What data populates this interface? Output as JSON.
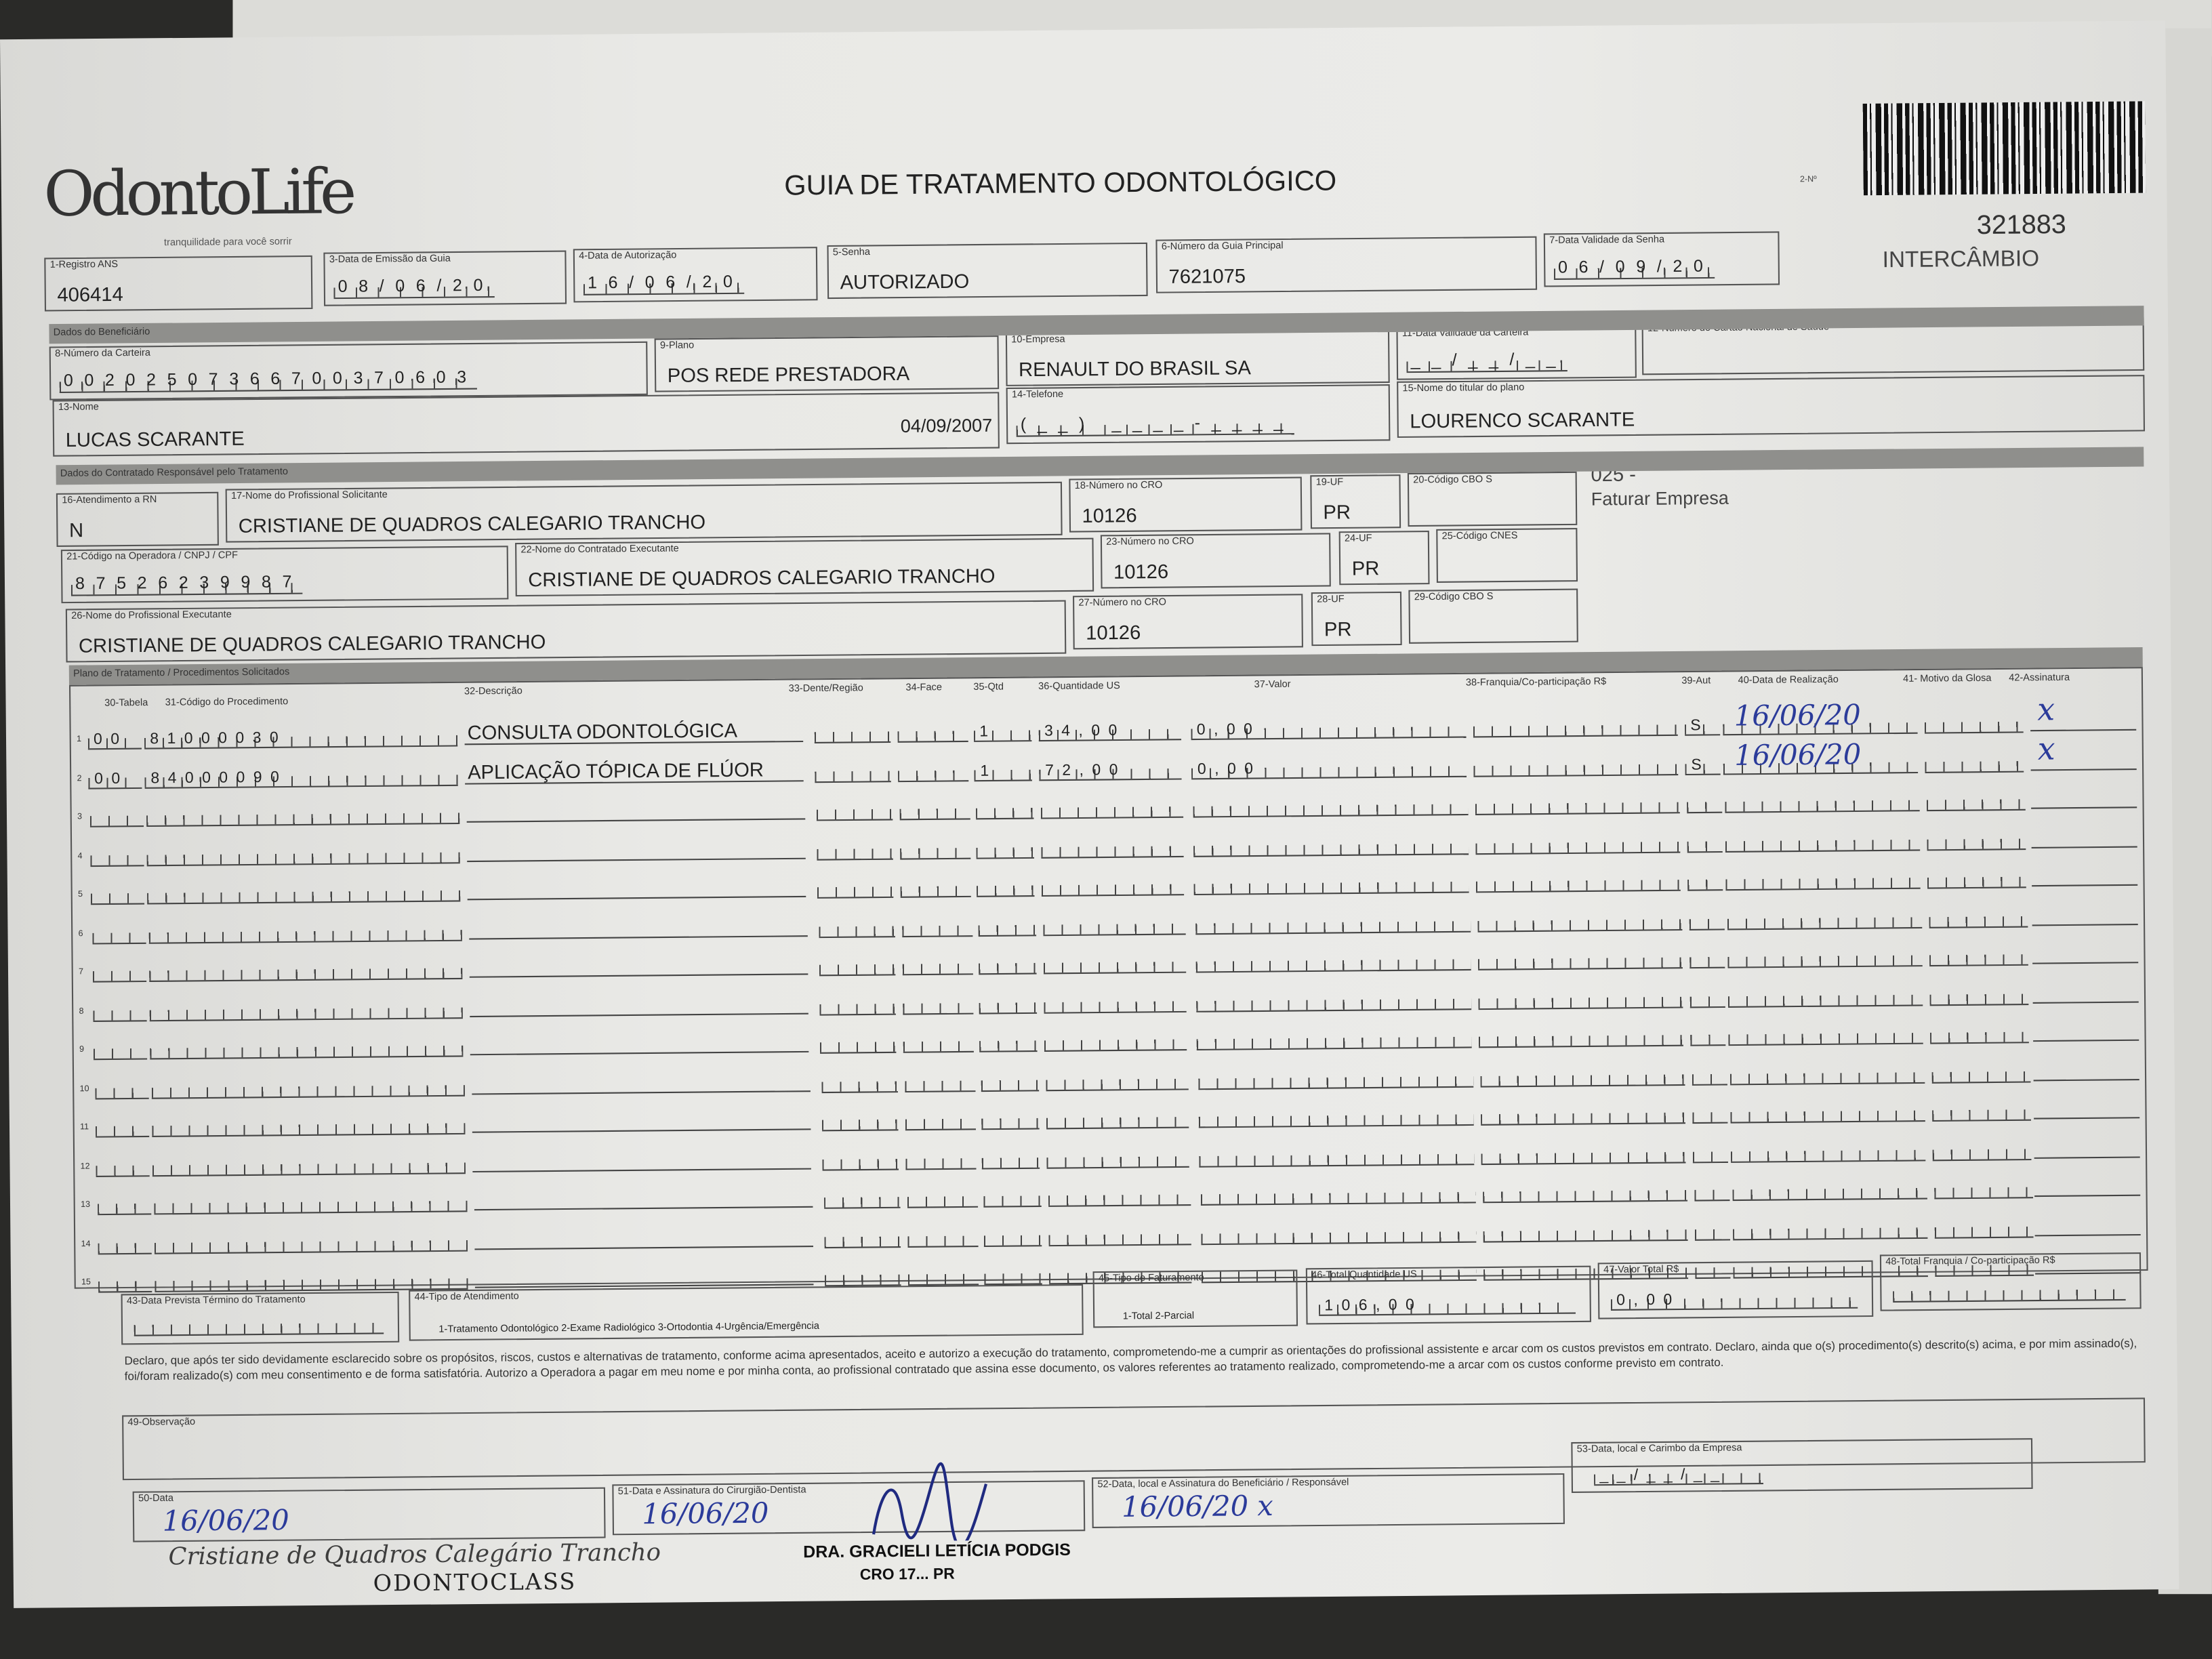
{
  "header": {
    "logo": "OdontoLife",
    "tagline": "tranquilidade para você sorrir",
    "title": "GUIA DE TRATAMENTO ODONTOLÓGICO",
    "guide_no_label": "2-Nº",
    "code": "321883",
    "type": "INTERCÂMBIO"
  },
  "fields": {
    "f1": {
      "label": "1-Registro ANS",
      "value": "406414"
    },
    "f3": {
      "label": "3-Data de Emissão da Guia",
      "value": "08/06/20"
    },
    "f4": {
      "label": "4-Data de Autorização",
      "value": "16/06/20"
    },
    "f5": {
      "label": "5-Senha",
      "value": "AUTORIZADO"
    },
    "f6": {
      "label": "6-Número da Guia Principal",
      "value": "7621075"
    },
    "f7": {
      "label": "7-Data Validade da Senha",
      "value": "06/09/20"
    },
    "f8": {
      "label": "8-Número da Carteira",
      "value": "00202507366700370603"
    },
    "f9": {
      "label": "9-Plano",
      "value": "POS REDE PRESTADORA"
    },
    "f10": {
      "label": "10-Empresa",
      "value": "RENAULT DO BRASIL SA"
    },
    "f11": {
      "label": "11-Data Validade da Carteira",
      "value": "__/__/__"
    },
    "f12": {
      "label": "12-Número do Cartão Nacional de Saúde",
      "value": ""
    },
    "f13": {
      "label": "13-Nome",
      "value": "LUCAS SCARANTE",
      "birth": "04/09/2007"
    },
    "f14": {
      "label": "14-Telefone",
      "value": "(__) ____-____"
    },
    "f15": {
      "label": "15-Nome do titular do plano",
      "value": "LOURENCO SCARANTE"
    },
    "f16": {
      "label": "16-Atendimento a RN",
      "value": "N"
    },
    "f17": {
      "label": "17-Nome do Profissional Solicitante",
      "value": "CRISTIANE DE QUADROS CALEGARIO TRANCHO"
    },
    "f18": {
      "label": "18-Número no CRO",
      "value": "10126"
    },
    "f19": {
      "label": "19-UF",
      "value": "PR"
    },
    "f20": {
      "label": "20-Código CBO S",
      "value": ""
    },
    "f21": {
      "label": "21-Código na Operadora / CNPJ / CPF",
      "value": "87526239987"
    },
    "f22": {
      "label": "22-Nome do Contratado Executante",
      "value": "CRISTIANE DE QUADROS CALEGARIO TRANCHO"
    },
    "f23": {
      "label": "23-Número no CRO",
      "value": "10126"
    },
    "f24": {
      "label": "24-UF",
      "value": "PR"
    },
    "f25": {
      "label": "25-Código CNES",
      "value": ""
    },
    "f26": {
      "label": "26-Nome do Profissional Executante",
      "value": "CRISTIANE DE QUADROS CALEGARIO TRANCHO"
    },
    "f27": {
      "label": "27-Número no CRO",
      "value": "10126"
    },
    "f28": {
      "label": "28-UF",
      "value": "PR"
    },
    "f29": {
      "label": "29-Código CBO S",
      "value": ""
    }
  },
  "billing_note": {
    "code": "025 -",
    "text": "Faturar Empresa"
  },
  "sections": {
    "beneficiary": "Dados do Beneficiário",
    "contracted": "Dados do Contratado Responsável pelo Tratamento",
    "plan": "Plano de Tratamento / Procedimentos Solicitados"
  },
  "table": {
    "columns": [
      "30-Tabela",
      "31-Código do Procedimento",
      "32-Descrição",
      "33-Dente/Região",
      "34-Face",
      "35-Qtd",
      "36-Quantidade US",
      "37-Valor",
      "38-Franquia/Co-participação R$",
      "39-Aut",
      "40-Data de Realização",
      "41- Motivo da Glosa",
      "42-Assinatura"
    ],
    "rows": [
      {
        "n": "1",
        "tabela": "00",
        "codigo": "81000030",
        "descricao": "CONSULTA ODONTOLÓGICA",
        "qtd": "1",
        "us": "34,00",
        "valor": "0,00",
        "aut": "S",
        "data": "16/06/20",
        "sig": "x"
      },
      {
        "n": "2",
        "tabela": "00",
        "codigo": "84000090",
        "descricao": "APLICAÇÃO TÓPICA DE FLÚOR",
        "qtd": "1",
        "us": "72,00",
        "valor": "0,00",
        "aut": "S",
        "data": "16/06/20",
        "sig": "x"
      },
      {
        "n": "3"
      },
      {
        "n": "4"
      },
      {
        "n": "5"
      },
      {
        "n": "6"
      },
      {
        "n": "7"
      },
      {
        "n": "8"
      },
      {
        "n": "9"
      },
      {
        "n": "10"
      },
      {
        "n": "11"
      },
      {
        "n": "12"
      },
      {
        "n": "13"
      },
      {
        "n": "14"
      },
      {
        "n": "15"
      }
    ]
  },
  "totals": {
    "f43": {
      "label": "43-Data Prevista Término do Tratamento",
      "value": ""
    },
    "f44": {
      "label": "44-Tipo de Atendimento",
      "value": "1-Tratamento Odontológico  2-Exame Radiológico  3-Ortodontia  4-Urgência/Emergência"
    },
    "f45": {
      "label": "45-Tipo de Faturamento",
      "value": "1-Total  2-Parcial"
    },
    "f46": {
      "label": "46-Total Quantidade US",
      "value": "106,00"
    },
    "f47": {
      "label": "47-Valor Total R$",
      "value": "0,00"
    },
    "f48": {
      "label": "48-Total Franquia / Co-participação R$",
      "value": ""
    }
  },
  "declaration": "Declaro, que após ter sido devidamente esclarecido sobre os propósitos, riscos, custos e alternativas de tratamento, conforme acima apresentados, aceito e autorizo a execução do tratamento, comprometendo-me a cumprir as orientações do profissional assistente e arcar com os custos previstos em contrato. Declaro, ainda que o(s) procedimento(s) descrito(s) acima, e por mim assinado(s), foi/foram realizado(s) com meu consentimento e de forma satisfatória. Autorizo a Operadora a pagar em meu nome e por minha conta, ao profissional contratado que assina esse documento, os valores referentes ao tratamento realizado, comprometendo-me a arcar com os custos conforme previsto em contrato.",
  "observation_label": "49-Observação",
  "signatures": {
    "f50": {
      "label": "50-Data",
      "date": "16/06/20"
    },
    "f51": {
      "label": "51-Data e Assinatura do Cirurgião-Dentista",
      "date": "16/06/20"
    },
    "f52": {
      "label": "52-Data, local e Assinatura do Beneficiário / Responsável",
      "date": "16/06/20 x"
    },
    "f53": {
      "label": "53-Data, local e Carimbo da Empresa",
      "value": "__/__/__"
    }
  },
  "stamps": {
    "stamp1_line1": "Cristiane de Quadros Calegário Trancho",
    "stamp1_line2": "ODONTOCLASS",
    "stamp2_line1": "DRA. GRACIELI LETÍCIA PODGIS",
    "stamp2_line2": "CRO 17... PR"
  },
  "colors": {
    "ink_blue": "#2b3b9a",
    "band_gray": "#8f8f8c",
    "paper": "#e9e9e6"
  }
}
